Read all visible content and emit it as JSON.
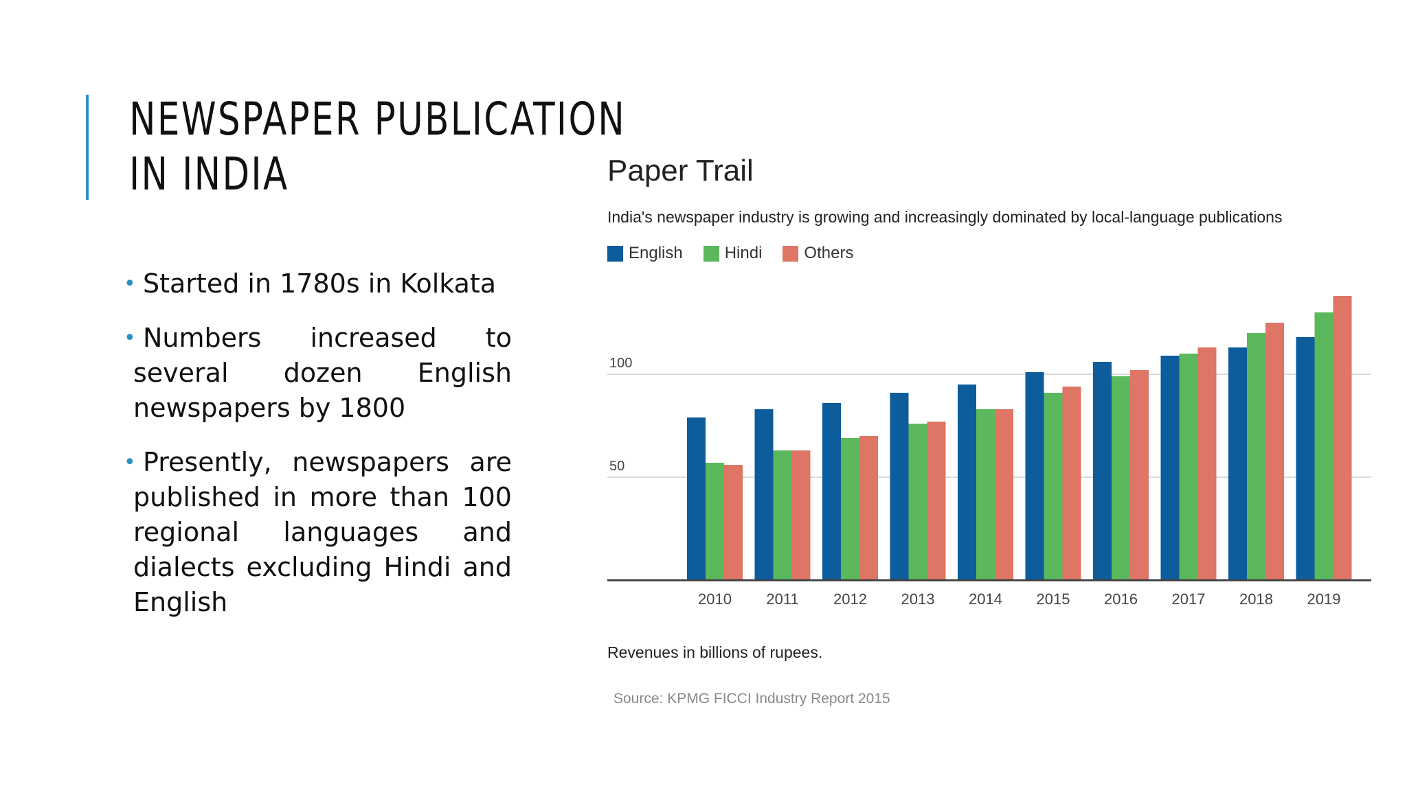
{
  "slide": {
    "title_line1": "NEWSPAPER PUBLICATION",
    "title_line2": "IN INDIA",
    "bullets": [
      "Started in 1780s in Kolkata",
      "Numbers increased to several dozen English newspapers by 1800",
      "Presently, newspapers are published in more than 100 regional languages and dialects excluding Hindi and English"
    ]
  },
  "colors": {
    "accent": "#2a8fc4",
    "english": "#0d5c9b",
    "hindi": "#5cb85c",
    "others": "#de7565",
    "grid": "#d9d9d9",
    "axis": "#444444"
  },
  "chart_data": {
    "type": "bar",
    "title": "Paper Trail",
    "subtitle": "India's newspaper industry is growing and increasingly dominated by local-language publications",
    "categories": [
      "2010",
      "2011",
      "2012",
      "2013",
      "2014",
      "2015",
      "2016",
      "2017",
      "2018",
      "2019"
    ],
    "series": [
      {
        "name": "English",
        "values": [
          79,
          83,
          86,
          91,
          95,
          101,
          106,
          109,
          113,
          118
        ]
      },
      {
        "name": "Hindi",
        "values": [
          57,
          63,
          69,
          76,
          83,
          91,
          99,
          110,
          120,
          130
        ]
      },
      {
        "name": "Others",
        "values": [
          56,
          63,
          70,
          77,
          83,
          94,
          102,
          113,
          125,
          138
        ]
      }
    ],
    "yticks": [
      "50",
      "100"
    ],
    "ylim": [
      0,
      145
    ],
    "grid": true,
    "legend_position": "top-left",
    "note": "Revenues in billions of rupees.",
    "source": "Source: KPMG FICCI Industry Report 2015"
  }
}
